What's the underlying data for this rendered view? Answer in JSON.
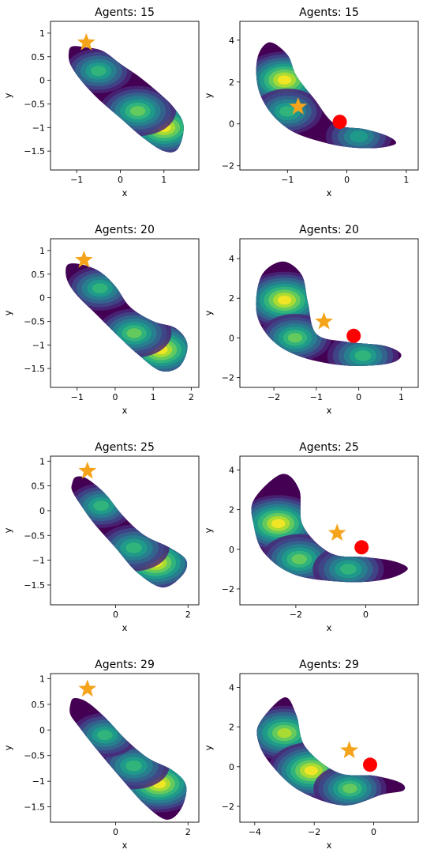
{
  "chart_data": [
    {
      "type": "contour",
      "title": "Agents: 15",
      "xlabel": "x",
      "ylabel": "y",
      "xlim": [
        -1.6,
        1.8
      ],
      "ylim": [
        -1.9,
        1.25
      ],
      "xticks": [
        -1,
        0,
        1
      ],
      "yticks": [
        -1.5,
        -1.0,
        -0.5,
        0.0,
        0.5,
        1.0
      ],
      "star": [
        -0.78,
        0.8
      ],
      "circle": null,
      "density_path": [
        [
          -1.18,
          0.6
        ],
        [
          -1.1,
          0.72
        ],
        [
          -0.8,
          0.7
        ],
        [
          -0.4,
          0.62
        ],
        [
          0.0,
          0.35
        ],
        [
          0.4,
          0.1
        ],
        [
          0.8,
          -0.2
        ],
        [
          1.2,
          -0.55
        ],
        [
          1.45,
          -0.95
        ],
        [
          1.32,
          -1.45
        ],
        [
          1.0,
          -1.5
        ],
        [
          0.5,
          -1.2
        ],
        [
          0.0,
          -0.8
        ],
        [
          -0.5,
          -0.4
        ],
        [
          -0.9,
          0.0
        ],
        [
          -1.15,
          0.35
        ]
      ],
      "density_peaks": [
        [
          1.0,
          -1.0,
          1.0
        ],
        [
          0.4,
          -0.65,
          0.7
        ],
        [
          -0.5,
          0.2,
          0.45
        ]
      ]
    },
    {
      "type": "contour",
      "title": "Agents: 15",
      "xlabel": "x",
      "ylabel": "y",
      "xlim": [
        -1.8,
        1.2
      ],
      "ylim": [
        -2.2,
        4.9
      ],
      "xticks": [
        -1,
        0,
        1
      ],
      "yticks": [
        -2,
        0,
        2,
        4
      ],
      "star": [
        -0.82,
        0.82
      ],
      "circle": [
        -0.12,
        0.1
      ],
      "density_path": [
        [
          -1.5,
          3.2
        ],
        [
          -1.3,
          3.9
        ],
        [
          -1.0,
          3.3
        ],
        [
          -0.85,
          2.3
        ],
        [
          -0.55,
          1.2
        ],
        [
          -0.2,
          0.0
        ],
        [
          0.3,
          -0.25
        ],
        [
          0.7,
          -0.6
        ],
        [
          0.82,
          -0.95
        ],
        [
          0.5,
          -1.15
        ],
        [
          0.0,
          -1.1
        ],
        [
          -0.5,
          -0.8
        ],
        [
          -0.95,
          -0.3
        ],
        [
          -1.3,
          0.6
        ],
        [
          -1.5,
          1.8
        ]
      ],
      "density_peaks": [
        [
          -1.05,
          2.1,
          1.0
        ],
        [
          -1.0,
          0.6,
          0.5
        ],
        [
          0.2,
          -0.6,
          0.4
        ]
      ]
    },
    {
      "type": "contour",
      "title": "Agents: 20",
      "xlabel": "x",
      "ylabel": "y",
      "xlim": [
        -1.7,
        2.2
      ],
      "ylim": [
        -1.9,
        1.25
      ],
      "xticks": [
        -1,
        0,
        1,
        2
      ],
      "yticks": [
        -1.5,
        -1.0,
        -0.5,
        0.0,
        0.5,
        1.0
      ],
      "star": [
        -0.82,
        0.8
      ],
      "circle": null,
      "density_path": [
        [
          -1.3,
          0.6
        ],
        [
          -1.2,
          0.72
        ],
        [
          -0.85,
          0.7
        ],
        [
          -0.4,
          0.55
        ],
        [
          0.0,
          0.25
        ],
        [
          0.4,
          -0.2
        ],
        [
          1.0,
          -0.5
        ],
        [
          1.6,
          -0.65
        ],
        [
          1.9,
          -1.0
        ],
        [
          1.7,
          -1.45
        ],
        [
          1.2,
          -1.55
        ],
        [
          0.6,
          -1.2
        ],
        [
          0.0,
          -0.75
        ],
        [
          -0.5,
          -0.35
        ],
        [
          -1.0,
          0.05
        ],
        [
          -1.25,
          0.35
        ]
      ],
      "density_peaks": [
        [
          1.2,
          -1.1,
          1.0
        ],
        [
          0.5,
          -0.75,
          0.65
        ],
        [
          -0.4,
          0.2,
          0.45
        ]
      ]
    },
    {
      "type": "contour",
      "title": "Agents: 20",
      "xlabel": "x",
      "ylabel": "y",
      "xlim": [
        -2.8,
        1.4
      ],
      "ylim": [
        -2.5,
        5.0
      ],
      "xticks": [
        -2,
        -1,
        0,
        1
      ],
      "yticks": [
        -2,
        0,
        2,
        4
      ],
      "star": [
        -0.82,
        0.82
      ],
      "circle": [
        -0.12,
        0.1
      ],
      "density_path": [
        [
          -2.3,
          3.1
        ],
        [
          -1.8,
          3.85
        ],
        [
          -1.35,
          3.2
        ],
        [
          -1.2,
          1.8
        ],
        [
          -1.0,
          0.2
        ],
        [
          -0.3,
          -0.2
        ],
        [
          0.6,
          -0.4
        ],
        [
          1.0,
          -0.85
        ],
        [
          0.7,
          -1.3
        ],
        [
          -0.3,
          -1.4
        ],
        [
          -1.3,
          -1.0
        ],
        [
          -2.0,
          -0.2
        ],
        [
          -2.4,
          1.2
        ]
      ],
      "density_peaks": [
        [
          -1.75,
          1.9,
          1.0
        ],
        [
          -1.5,
          0.0,
          0.6
        ],
        [
          0.1,
          -0.9,
          0.55
        ]
      ]
    },
    {
      "type": "contour",
      "title": "Agents: 25",
      "xlabel": "x",
      "ylabel": "y",
      "xlim": [
        -1.8,
        2.3
      ],
      "ylim": [
        -1.9,
        1.1
      ],
      "xticks": [
        0,
        2
      ],
      "yticks": [
        -1.5,
        -1.0,
        -0.5,
        0.0,
        0.5,
        1.0
      ],
      "star": [
        -0.78,
        0.8
      ],
      "circle": null,
      "density_path": [
        [
          -1.2,
          0.55
        ],
        [
          -1.1,
          0.68
        ],
        [
          -0.8,
          0.65
        ],
        [
          -0.3,
          0.35
        ],
        [
          0.2,
          -0.1
        ],
        [
          0.8,
          -0.5
        ],
        [
          1.5,
          -0.75
        ],
        [
          1.95,
          -1.0
        ],
        [
          1.85,
          -1.3
        ],
        [
          1.3,
          -1.55
        ],
        [
          0.6,
          -1.25
        ],
        [
          0.0,
          -0.75
        ],
        [
          -0.55,
          -0.3
        ],
        [
          -0.95,
          0.1
        ],
        [
          -1.2,
          0.4
        ]
      ],
      "density_peaks": [
        [
          1.1,
          -1.05,
          1.0
        ],
        [
          0.5,
          -0.75,
          0.55
        ],
        [
          -0.4,
          0.1,
          0.45
        ]
      ]
    },
    {
      "type": "contour",
      "title": "Agents: 25",
      "xlabel": "x",
      "ylabel": "y",
      "xlim": [
        -3.6,
        1.5
      ],
      "ylim": [
        -2.8,
        4.7
      ],
      "xticks": [
        -2,
        0
      ],
      "yticks": [
        -2,
        0,
        2,
        4
      ],
      "star": [
        -0.82,
        0.82
      ],
      "circle": [
        -0.12,
        0.1
      ],
      "density_path": [
        [
          -3.2,
          2.5
        ],
        [
          -2.4,
          3.8
        ],
        [
          -1.9,
          3.0
        ],
        [
          -1.8,
          1.2
        ],
        [
          -1.0,
          -0.2
        ],
        [
          0.0,
          -0.4
        ],
        [
          0.8,
          -0.6
        ],
        [
          1.2,
          -1.0
        ],
        [
          0.6,
          -1.5
        ],
        [
          -0.5,
          -1.65
        ],
        [
          -2.0,
          -1.3
        ],
        [
          -2.9,
          -0.2
        ],
        [
          -3.2,
          1.2
        ]
      ],
      "density_peaks": [
        [
          -2.5,
          1.3,
          1.0
        ],
        [
          -1.9,
          -0.5,
          0.7
        ],
        [
          -0.5,
          -1.0,
          0.55
        ]
      ]
    },
    {
      "type": "contour",
      "title": "Agents: 29",
      "xlabel": "x",
      "ylabel": "y",
      "xlim": [
        -1.8,
        2.3
      ],
      "ylim": [
        -1.8,
        1.1
      ],
      "xticks": [
        0,
        2
      ],
      "yticks": [
        -1.5,
        -1.0,
        -0.5,
        0.0,
        0.5,
        1.0
      ],
      "star": [
        -0.78,
        0.8
      ],
      "circle": null,
      "density_path": [
        [
          -1.25,
          0.5
        ],
        [
          -1.15,
          0.62
        ],
        [
          -0.8,
          0.55
        ],
        [
          -0.3,
          0.25
        ],
        [
          0.3,
          -0.2
        ],
        [
          0.9,
          -0.55
        ],
        [
          1.6,
          -0.8
        ],
        [
          1.95,
          -1.1
        ],
        [
          1.8,
          -1.55
        ],
        [
          1.4,
          -1.75
        ],
        [
          0.8,
          -1.45
        ],
        [
          0.1,
          -0.9
        ],
        [
          -0.5,
          -0.4
        ],
        [
          -1.0,
          0.05
        ],
        [
          -1.25,
          0.3
        ]
      ],
      "density_peaks": [
        [
          1.2,
          -1.05,
          1.0
        ],
        [
          0.5,
          -0.7,
          0.55
        ],
        [
          -0.3,
          -0.1,
          0.45
        ]
      ]
    },
    {
      "type": "contour",
      "title": "Agents: 29",
      "xlabel": "x",
      "ylabel": "y",
      "xlim": [
        -4.5,
        1.5
      ],
      "ylim": [
        -2.8,
        4.7
      ],
      "xticks": [
        -4,
        -2,
        0
      ],
      "yticks": [
        -2,
        0,
        2,
        4
      ],
      "star": [
        -0.82,
        0.82
      ],
      "circle": [
        -0.12,
        0.1
      ],
      "density_path": [
        [
          -3.8,
          2.3
        ],
        [
          -3.0,
          3.5
        ],
        [
          -2.6,
          2.6
        ],
        [
          -2.3,
          1.0
        ],
        [
          -1.2,
          -0.3
        ],
        [
          0.0,
          -0.45
        ],
        [
          0.9,
          -0.8
        ],
        [
          1.0,
          -1.2
        ],
        [
          0.3,
          -1.4
        ],
        [
          -1.0,
          -1.95
        ],
        [
          -2.5,
          -1.2
        ],
        [
          -3.5,
          0.2
        ],
        [
          -3.9,
          1.4
        ]
      ],
      "density_peaks": [
        [
          -3.0,
          1.7,
          0.9
        ],
        [
          -2.1,
          -0.2,
          1.0
        ],
        [
          -0.8,
          -1.1,
          0.6
        ]
      ]
    }
  ],
  "colors": {
    "viridis": [
      "#440154",
      "#482878",
      "#3e4989",
      "#31688e",
      "#26828e",
      "#1f9e89",
      "#35b779",
      "#6ece58",
      "#b5de2b",
      "#fde725"
    ],
    "star": "#f5a31a",
    "circle": "#ff0000"
  }
}
